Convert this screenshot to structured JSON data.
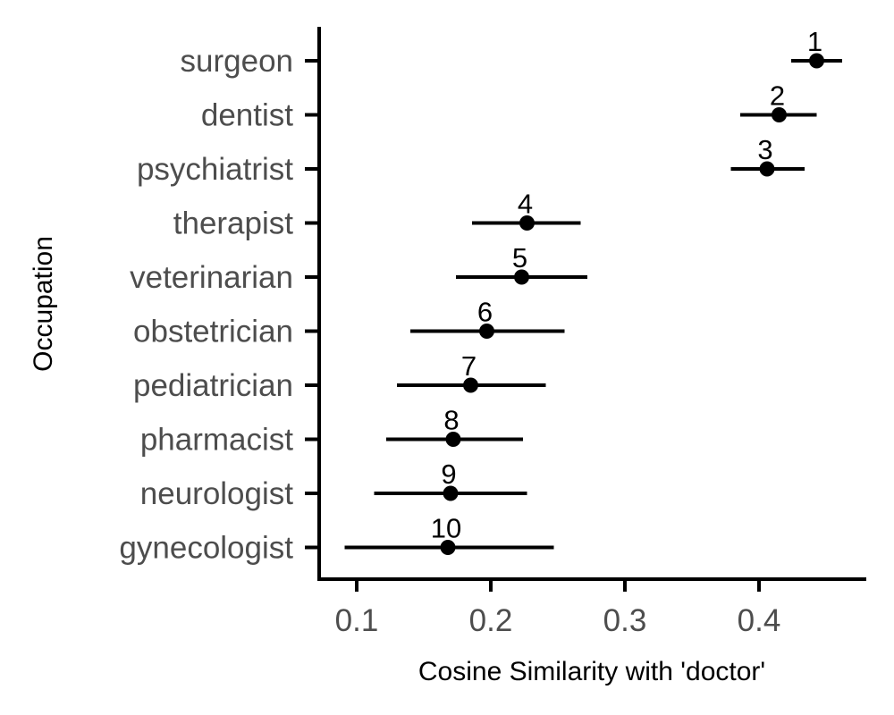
{
  "chart_data": {
    "type": "scatter",
    "xlabel": "Cosine Similarity with 'doctor'",
    "ylabel": "Occupation",
    "xlim": [
      0.072,
      0.48
    ],
    "x_ticks": [
      0.1,
      0.2,
      0.3,
      0.4
    ],
    "x_tick_labels": [
      "0.1",
      "0.2",
      "0.3",
      "0.4"
    ],
    "grid": false,
    "legend": "none",
    "colors": {
      "points": "#000000",
      "axis": "#000000",
      "tick_text": "#4d4d4d"
    },
    "points": [
      {
        "rank": "1",
        "label": "surgeon",
        "value": 0.443,
        "ci": [
          0.424,
          0.462
        ]
      },
      {
        "rank": "2",
        "label": "dentist",
        "value": 0.415,
        "ci": [
          0.386,
          0.443
        ]
      },
      {
        "rank": "3",
        "label": "psychiatrist",
        "value": 0.406,
        "ci": [
          0.379,
          0.434
        ]
      },
      {
        "rank": "4",
        "label": "therapist",
        "value": 0.227,
        "ci": [
          0.186,
          0.267
        ]
      },
      {
        "rank": "5",
        "label": "veterinarian",
        "value": 0.223,
        "ci": [
          0.174,
          0.272
        ]
      },
      {
        "rank": "6",
        "label": "obstetrician",
        "value": 0.197,
        "ci": [
          0.14,
          0.255
        ]
      },
      {
        "rank": "7",
        "label": "pediatrician",
        "value": 0.185,
        "ci": [
          0.13,
          0.241
        ]
      },
      {
        "rank": "8",
        "label": "pharmacist",
        "value": 0.172,
        "ci": [
          0.122,
          0.224
        ]
      },
      {
        "rank": "9",
        "label": "neurologist",
        "value": 0.17,
        "ci": [
          0.113,
          0.227
        ]
      },
      {
        "rank": "10",
        "label": "gynecologist",
        "value": 0.168,
        "ci": [
          0.091,
          0.247
        ]
      }
    ]
  }
}
